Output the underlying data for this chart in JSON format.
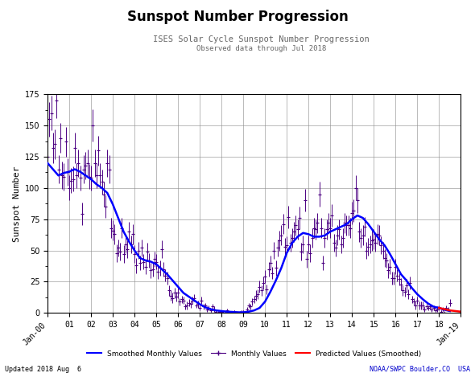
{
  "title": "Sunspot Number Progression",
  "subtitle1": "ISES Solar Cycle Sunspot Number Progression",
  "subtitle2": "Observed data through Jul 2018",
  "ylabel": "Sunspot Number",
  "bottom_left": "Updated 2018 Aug  6",
  "bottom_right": "NOAA/SWPC Boulder,CO  USA",
  "bottom_right_color": "#0000cc",
  "ylim": [
    0,
    175
  ],
  "yticks": [
    0,
    25,
    50,
    75,
    100,
    125,
    150,
    175
  ],
  "smoothed_color": "#0000ff",
  "monthly_color": "#4b0082",
  "predicted_color": "#ff0000",
  "background_color": "#ffffff",
  "smoothed_x": [
    2000.0,
    2000.25,
    2000.5,
    2000.75,
    2001.0,
    2001.25,
    2001.5,
    2001.75,
    2002.0,
    2002.25,
    2002.5,
    2002.75,
    2003.0,
    2003.25,
    2003.5,
    2003.75,
    2004.0,
    2004.25,
    2004.5,
    2004.75,
    2005.0,
    2005.25,
    2005.5,
    2005.75,
    2006.0,
    2006.25,
    2006.5,
    2006.75,
    2007.0,
    2007.25,
    2007.5,
    2007.75,
    2008.0,
    2008.25,
    2008.5,
    2008.75,
    2009.0,
    2009.25,
    2009.5,
    2009.75,
    2010.0,
    2010.25,
    2010.5,
    2010.75,
    2011.0,
    2011.25,
    2011.5,
    2011.75,
    2012.0,
    2012.25,
    2012.5,
    2012.75,
    2013.0,
    2013.25,
    2013.5,
    2013.75,
    2014.0,
    2014.25,
    2014.5,
    2014.75,
    2015.0,
    2015.25,
    2015.5,
    2015.75,
    2016.0,
    2016.25,
    2016.5,
    2016.75,
    2017.0,
    2017.25,
    2017.5,
    2017.75,
    2018.0,
    2018.25,
    2018.5
  ],
  "smoothed_y": [
    120.0,
    115.0,
    110.0,
    112.0,
    113.0,
    115.0,
    113.0,
    110.0,
    107.0,
    103.0,
    100.0,
    96.0,
    87.0,
    76.0,
    65.0,
    57.0,
    50.0,
    44.0,
    42.0,
    41.0,
    39.0,
    35.0,
    31.0,
    26.0,
    21.0,
    16.0,
    13.0,
    10.0,
    7.0,
    4.5,
    3.0,
    2.0,
    1.5,
    1.0,
    0.8,
    0.5,
    0.5,
    1.0,
    2.0,
    4.0,
    9.0,
    17.0,
    26.0,
    36.0,
    48.0,
    56.0,
    61.0,
    64.0,
    63.0,
    61.0,
    61.0,
    62.0,
    65.0,
    67.0,
    69.0,
    71.0,
    75.0,
    78.0,
    76.0,
    71.0,
    65.0,
    59.0,
    54.0,
    47.0,
    39.0,
    31.0,
    26.0,
    20.0,
    15.0,
    11.0,
    7.5,
    5.0,
    4.0,
    2.5,
    1.5
  ],
  "monthly_x": [
    2000.0,
    2000.083,
    2000.167,
    2000.25,
    2000.333,
    2000.417,
    2000.5,
    2000.583,
    2000.667,
    2000.75,
    2000.833,
    2000.917,
    2001.0,
    2001.083,
    2001.167,
    2001.25,
    2001.333,
    2001.417,
    2001.5,
    2001.583,
    2001.667,
    2001.75,
    2001.833,
    2001.917,
    2002.0,
    2002.083,
    2002.167,
    2002.25,
    2002.333,
    2002.417,
    2002.5,
    2002.583,
    2002.667,
    2002.75,
    2002.833,
    2002.917,
    2003.0,
    2003.083,
    2003.167,
    2003.25,
    2003.333,
    2003.417,
    2003.5,
    2003.583,
    2003.667,
    2003.75,
    2003.833,
    2003.917,
    2004.0,
    2004.083,
    2004.167,
    2004.25,
    2004.333,
    2004.417,
    2004.5,
    2004.583,
    2004.667,
    2004.75,
    2004.833,
    2004.917,
    2005.0,
    2005.083,
    2005.167,
    2005.25,
    2005.333,
    2005.417,
    2005.5,
    2005.583,
    2005.667,
    2005.75,
    2005.833,
    2005.917,
    2006.0,
    2006.083,
    2006.167,
    2006.25,
    2006.333,
    2006.417,
    2006.5,
    2006.583,
    2006.667,
    2006.75,
    2006.833,
    2006.917,
    2007.0,
    2007.083,
    2007.167,
    2007.25,
    2007.333,
    2007.417,
    2007.5,
    2007.583,
    2007.667,
    2007.75,
    2007.833,
    2007.917,
    2008.0,
    2008.083,
    2008.167,
    2008.25,
    2008.333,
    2008.417,
    2008.5,
    2008.583,
    2008.667,
    2008.75,
    2008.833,
    2008.917,
    2009.0,
    2009.083,
    2009.167,
    2009.25,
    2009.333,
    2009.417,
    2009.5,
    2009.583,
    2009.667,
    2009.75,
    2009.833,
    2009.917,
    2010.0,
    2010.083,
    2010.167,
    2010.25,
    2010.333,
    2010.417,
    2010.5,
    2010.583,
    2010.667,
    2010.75,
    2010.833,
    2010.917,
    2011.0,
    2011.083,
    2011.167,
    2011.25,
    2011.333,
    2011.417,
    2011.5,
    2011.583,
    2011.667,
    2011.75,
    2011.833,
    2011.917,
    2012.0,
    2012.083,
    2012.167,
    2012.25,
    2012.333,
    2012.417,
    2012.5,
    2012.583,
    2012.667,
    2012.75,
    2012.833,
    2012.917,
    2013.0,
    2013.083,
    2013.167,
    2013.25,
    2013.333,
    2013.417,
    2013.5,
    2013.583,
    2013.667,
    2013.75,
    2013.833,
    2013.917,
    2014.0,
    2014.083,
    2014.167,
    2014.25,
    2014.333,
    2014.417,
    2014.5,
    2014.583,
    2014.667,
    2014.75,
    2014.833,
    2014.917,
    2015.0,
    2015.083,
    2015.167,
    2015.25,
    2015.333,
    2015.417,
    2015.5,
    2015.583,
    2015.667,
    2015.75,
    2015.833,
    2015.917,
    2016.0,
    2016.083,
    2016.167,
    2016.25,
    2016.333,
    2016.417,
    2016.5,
    2016.583,
    2016.667,
    2016.75,
    2016.833,
    2016.917,
    2017.0,
    2017.083,
    2017.167,
    2017.25,
    2017.333,
    2017.417,
    2017.5,
    2017.583,
    2017.667,
    2017.75,
    2017.833,
    2017.917,
    2018.0,
    2018.083,
    2018.167,
    2018.25,
    2018.333,
    2018.417,
    2018.5
  ],
  "monthly_y": [
    125.0,
    155.0,
    160.0,
    132.0,
    135.0,
    170.0,
    115.0,
    140.0,
    110.0,
    109.0,
    137.0,
    113.0,
    100.0,
    106.0,
    107.0,
    132.0,
    110.0,
    120.0,
    108.0,
    79.0,
    115.0,
    118.0,
    120.0,
    109.0,
    108.0,
    150.0,
    120.0,
    110.0,
    130.0,
    110.0,
    105.0,
    95.0,
    85.0,
    120.0,
    115.0,
    68.0,
    66.0,
    63.0,
    48.0,
    52.0,
    49.0,
    68.0,
    47.0,
    55.0,
    51.0,
    65.0,
    55.0,
    63.0,
    47.0,
    38.0,
    50.0,
    40.0,
    52.0,
    41.0,
    37.0,
    49.0,
    42.0,
    34.0,
    35.0,
    43.0,
    41.0,
    33.0,
    36.0,
    51.0,
    35.0,
    30.0,
    28.0,
    18.0,
    14.0,
    12.0,
    16.0,
    13.0,
    16.0,
    9.0,
    11.0,
    10.0,
    5.0,
    6.0,
    8.0,
    7.0,
    10.0,
    12.0,
    6.0,
    7.0,
    4.0,
    10.0,
    5.0,
    6.0,
    3.0,
    4.0,
    2.0,
    5.0,
    3.0,
    1.0,
    0.0,
    1.0,
    1.0,
    0.0,
    0.0,
    2.0,
    0.0,
    0.0,
    0.0,
    1.0,
    0.0,
    0.0,
    0.0,
    1.0,
    1.0,
    0.0,
    3.0,
    6.0,
    5.0,
    9.0,
    11.0,
    14.0,
    15.0,
    21.0,
    18.0,
    24.0,
    29.0,
    19.0,
    35.0,
    40.0,
    32.0,
    50.0,
    36.0,
    52.0,
    58.0,
    62.0,
    71.0,
    53.0,
    54.0,
    77.0,
    56.0,
    60.0,
    65.0,
    70.0,
    67.0,
    76.0,
    49.0,
    55.0,
    90.0,
    43.0,
    55.0,
    48.0,
    60.0,
    68.0,
    67.0,
    72.0,
    95.0,
    68.0,
    40.0,
    60.0,
    67.0,
    72.0,
    68.0,
    78.0,
    56.0,
    52.0,
    62.0,
    67.0,
    55.0,
    60.0,
    72.0,
    70.0,
    70.0,
    68.0,
    80.0,
    82.0,
    100.0,
    90.0,
    65.0,
    60.0,
    62.0,
    69.0,
    50.0,
    53.0,
    55.0,
    58.0,
    59.0,
    56.0,
    63.0,
    62.0,
    54.0,
    50.0,
    44.0,
    42.0,
    34.0,
    37.0,
    28.0,
    28.0,
    37.0,
    30.0,
    27.0,
    23.0,
    18.0,
    17.0,
    22.0,
    15.0,
    24.0,
    11.0,
    9.0,
    6.0,
    10.0,
    6.0,
    6.0,
    6.0,
    3.0,
    5.0,
    4.0,
    5.0,
    3.0,
    4.0,
    2.0,
    3.0,
    4.0,
    1.0,
    3.0,
    0.0,
    4.0,
    3.0,
    8.0
  ],
  "monthly_err": [
    12.0,
    14.0,
    14.0,
    12.0,
    12.0,
    14.0,
    11.0,
    12.0,
    11.0,
    11.0,
    12.0,
    11.0,
    10.0,
    10.0,
    10.0,
    12.0,
    10.0,
    11.0,
    10.0,
    9.0,
    11.0,
    11.0,
    11.0,
    10.0,
    10.0,
    13.0,
    11.0,
    10.0,
    12.0,
    10.0,
    10.0,
    10.0,
    9.0,
    11.0,
    11.0,
    8.0,
    8.0,
    8.0,
    7.0,
    7.0,
    7.0,
    8.0,
    7.0,
    7.0,
    7.0,
    8.0,
    7.0,
    8.0,
    7.0,
    6.0,
    7.0,
    6.0,
    7.0,
    6.0,
    6.0,
    7.0,
    6.0,
    6.0,
    6.0,
    6.0,
    6.0,
    6.0,
    6.0,
    7.0,
    6.0,
    5.0,
    5.0,
    4.0,
    4.0,
    4.0,
    4.0,
    4.0,
    4.0,
    3.0,
    3.0,
    3.0,
    2.0,
    3.0,
    3.0,
    3.0,
    3.0,
    3.0,
    2.0,
    3.0,
    2.0,
    3.0,
    2.0,
    2.0,
    2.0,
    2.0,
    1.5,
    2.0,
    2.0,
    1.0,
    0.5,
    1.0,
    1.0,
    0.5,
    0.5,
    1.0,
    0.5,
    0.5,
    0.5,
    1.0,
    0.5,
    0.5,
    0.5,
    1.0,
    1.0,
    0.5,
    1.5,
    2.0,
    2.0,
    3.0,
    3.0,
    4.0,
    4.0,
    5.0,
    4.0,
    5.0,
    5.0,
    4.0,
    6.0,
    6.0,
    5.0,
    7.0,
    6.0,
    7.0,
    8.0,
    8.0,
    8.0,
    7.0,
    7.0,
    9.0,
    7.0,
    8.0,
    8.0,
    8.0,
    8.0,
    9.0,
    7.0,
    7.0,
    9.0,
    7.0,
    7.0,
    7.0,
    8.0,
    8.0,
    8.0,
    8.0,
    10.0,
    8.0,
    6.0,
    8.0,
    8.0,
    8.0,
    8.0,
    9.0,
    7.0,
    7.0,
    8.0,
    8.0,
    7.0,
    8.0,
    8.0,
    8.0,
    8.0,
    8.0,
    9.0,
    9.0,
    10.0,
    10.0,
    8.0,
    8.0,
    8.0,
    8.0,
    7.0,
    7.0,
    7.0,
    8.0,
    8.0,
    7.0,
    8.0,
    8.0,
    7.0,
    7.0,
    7.0,
    6.0,
    6.0,
    6.0,
    5.0,
    5.0,
    6.0,
    5.0,
    5.0,
    5.0,
    4.0,
    4.0,
    5.0,
    4.0,
    5.0,
    3.0,
    3.0,
    3.0,
    3.0,
    3.0,
    3.0,
    3.0,
    2.0,
    2.0,
    2.0,
    2.0,
    2.0,
    2.0,
    1.5,
    2.0,
    2.0,
    1.0,
    1.5,
    0.5,
    2.0,
    1.5,
    3.0
  ],
  "predicted_x": [
    2018.0,
    2018.25,
    2018.5,
    2018.75,
    2019.0
  ],
  "predicted_y": [
    4.0,
    3.0,
    2.0,
    1.5,
    1.0
  ],
  "xtick_positions": [
    2000.0,
    2001.0,
    2002.0,
    2003.0,
    2004.0,
    2005.0,
    2006.0,
    2007.0,
    2008.0,
    2009.0,
    2010.0,
    2011.0,
    2012.0,
    2013.0,
    2014.0,
    2015.0,
    2016.0,
    2017.0,
    2018.0,
    2019.0
  ],
  "xtick_labels": [
    "Jan-00",
    "01",
    "02",
    "03",
    "04",
    "05",
    "06",
    "07",
    "08",
    "09",
    "10",
    "11",
    "12",
    "13",
    "14",
    "15",
    "16",
    "17",
    "18",
    "Jan-19"
  ]
}
